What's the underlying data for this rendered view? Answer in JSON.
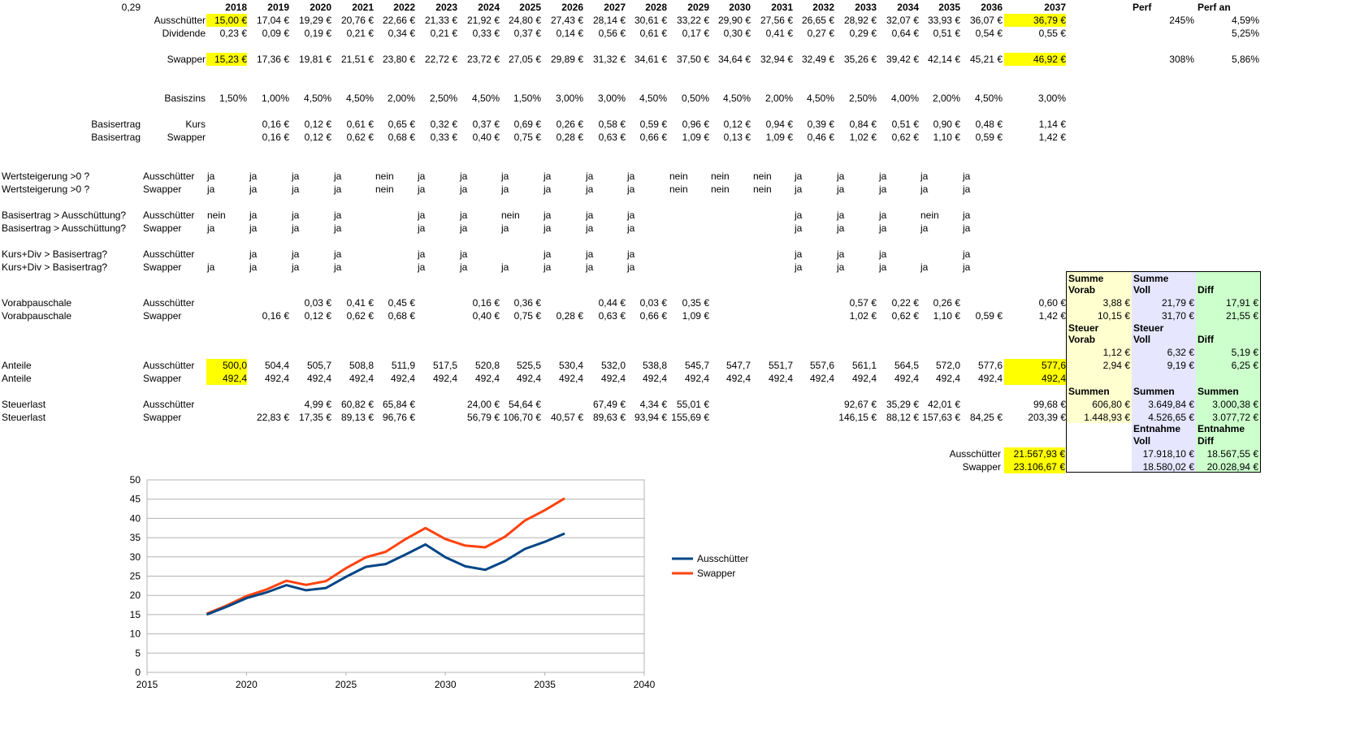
{
  "corner_value": "0,29",
  "colors": {
    "highlight": "#ffff00",
    "summary_yellow": "#ffffd0",
    "summary_lavender": "#e6e6ff",
    "summary_green": "#ccffcc",
    "ausschuetter": "#004586",
    "swapper": "#ff420e"
  },
  "header": {
    "years": [
      "2018",
      "2019",
      "2020",
      "2021",
      "2022",
      "2023",
      "2024",
      "2025",
      "2026",
      "2027",
      "2028",
      "2029",
      "2030",
      "2031",
      "2032",
      "2033",
      "2034",
      "2035",
      "2036"
    ],
    "final_year": "2037",
    "perf": "Perf",
    "perf_an": "Perf an"
  },
  "rows": {
    "ausschuetter": {
      "label": "Ausschütter",
      "values": [
        "15,00 €",
        "17,04 €",
        "19,29 €",
        "20,76 €",
        "22,66 €",
        "21,33 €",
        "21,92 €",
        "24,80 €",
        "27,43 €",
        "28,14 €",
        "30,61 €",
        "33,22 €",
        "29,90 €",
        "27,56 €",
        "26,65 €",
        "28,92 €",
        "32,07 €",
        "33,93 €",
        "36,07 €"
      ],
      "final": "36,79 €",
      "perf": "245%",
      "perf_an": "4,59%"
    },
    "dividende": {
      "label": "Dividende",
      "values": [
        "0,23 €",
        "0,09 €",
        "0,19 €",
        "0,21 €",
        "0,34 €",
        "0,21 €",
        "0,33 €",
        "0,37 €",
        "0,14 €",
        "0,56 €",
        "0,61 €",
        "0,17 €",
        "0,30 €",
        "0,41 €",
        "0,27 €",
        "0,29 €",
        "0,64 €",
        "0,51 €",
        "0,54 €"
      ],
      "final": "0,55 €",
      "perf_an": "5,25%"
    },
    "swapper": {
      "label": "Swapper",
      "values": [
        "15,23 €",
        "17,36 €",
        "19,81 €",
        "21,51 €",
        "23,80 €",
        "22,72 €",
        "23,72 €",
        "27,05 €",
        "29,89 €",
        "31,32 €",
        "34,61 €",
        "37,50 €",
        "34,64 €",
        "32,94 €",
        "32,49 €",
        "35,26 €",
        "39,42 €",
        "42,14 €",
        "45,21 €"
      ],
      "final": "46,92 €",
      "perf": "308%",
      "perf_an": "5,86%"
    },
    "basiszins": {
      "label": "Basiszins",
      "values": [
        "1,50%",
        "1,00%",
        "4,50%",
        "4,50%",
        "2,00%",
        "2,50%",
        "4,50%",
        "1,50%",
        "3,00%",
        "3,00%",
        "4,50%",
        "0,50%",
        "4,50%",
        "2,00%",
        "4,50%",
        "2,50%",
        "4,00%",
        "2,00%",
        "4,50%"
      ],
      "final": "3,00%"
    },
    "basisertrag_kurs": {
      "label_a": "Basisertrag",
      "label_b": "Kurs",
      "values": [
        "",
        "0,16 €",
        "0,12 €",
        "0,61 €",
        "0,65 €",
        "0,32 €",
        "0,37 €",
        "0,69 €",
        "0,26 €",
        "0,58 €",
        "0,59 €",
        "0,96 €",
        "0,12 €",
        "0,94 €",
        "0,39 €",
        "0,84 €",
        "0,51 €",
        "0,90 €",
        "0,48 €"
      ],
      "final": "1,14 €"
    },
    "basisertrag_swapper": {
      "label_a": "Basisertrag",
      "label_b": "Swapper",
      "values": [
        "",
        "0,16 €",
        "0,12 €",
        "0,62 €",
        "0,68 €",
        "0,33 €",
        "0,40 €",
        "0,75 €",
        "0,28 €",
        "0,63 €",
        "0,66 €",
        "1,09 €",
        "0,13 €",
        "1,09 €",
        "0,46 €",
        "1,02 €",
        "0,62 €",
        "1,10 €",
        "0,59 €"
      ],
      "final": "1,42 €"
    }
  },
  "flag_rows": [
    {
      "label": "Wertsteigerung >0 ?",
      "sub": "Ausschütter",
      "values": [
        "ja",
        "ja",
        "ja",
        "ja",
        "nein",
        "ja",
        "ja",
        "ja",
        "ja",
        "ja",
        "ja",
        "nein",
        "nein",
        "nein",
        "ja",
        "ja",
        "ja",
        "ja",
        "ja"
      ]
    },
    {
      "label": "Wertsteigerung >0 ?",
      "sub": "Swapper",
      "values": [
        "ja",
        "ja",
        "ja",
        "ja",
        "nein",
        "ja",
        "ja",
        "ja",
        "ja",
        "ja",
        "ja",
        "nein",
        "nein",
        "nein",
        "ja",
        "ja",
        "ja",
        "ja",
        "ja"
      ]
    },
    {
      "label": "Basisertrag > Ausschüttung?",
      "sub": "Ausschütter",
      "values": [
        "nein",
        "ja",
        "ja",
        "ja",
        "",
        "ja",
        "ja",
        "nein",
        "ja",
        "ja",
        "ja",
        "",
        "",
        "",
        "ja",
        "ja",
        "ja",
        "nein",
        "ja"
      ]
    },
    {
      "label": "Basisertrag > Ausschüttung?",
      "sub": "Swapper",
      "values": [
        "ja",
        "ja",
        "ja",
        "ja",
        "",
        "ja",
        "ja",
        "ja",
        "ja",
        "ja",
        "ja",
        "",
        "",
        "",
        "ja",
        "ja",
        "ja",
        "ja",
        "ja"
      ]
    },
    {
      "label": "Kurs+Div > Basisertrag?",
      "sub": "Ausschütter",
      "values": [
        "",
        "ja",
        "ja",
        "ja",
        "",
        "ja",
        "ja",
        "",
        "ja",
        "ja",
        "ja",
        "",
        "",
        "",
        "ja",
        "ja",
        "ja",
        "",
        "ja"
      ]
    },
    {
      "label": "Kurs+Div > Basisertrag?",
      "sub": "Swapper",
      "values": [
        "ja",
        "ja",
        "ja",
        "ja",
        "",
        "ja",
        "ja",
        "ja",
        "ja",
        "ja",
        "ja",
        "",
        "",
        "",
        "ja",
        "ja",
        "ja",
        "ja",
        "ja"
      ]
    }
  ],
  "vorab_rows": [
    {
      "label": "Vorabpauschale",
      "sub": "Ausschütter",
      "values": [
        "",
        "",
        "0,03 €",
        "0,41 €",
        "0,45 €",
        "",
        "0,16 €",
        "0,36 €",
        "",
        "0,44 €",
        "0,03 €",
        "0,35 €",
        "",
        "",
        "",
        "0,57 €",
        "0,22 €",
        "0,26 €",
        ""
      ],
      "final": "0,60 €"
    },
    {
      "label": "Vorabpauschale",
      "sub": "Swapper",
      "values": [
        "",
        "0,16 €",
        "0,12 €",
        "0,62 €",
        "0,68 €",
        "",
        "0,40 €",
        "0,75 €",
        "0,28 €",
        "0,63 €",
        "0,66 €",
        "1,09 €",
        "",
        "",
        "",
        "1,02 €",
        "0,62 €",
        "1,10 €",
        "0,59 €"
      ],
      "final": "1,42 €"
    }
  ],
  "anteile_rows": [
    {
      "label": "Anteile",
      "sub": "Ausschütter",
      "values": [
        "500,0",
        "504,4",
        "505,7",
        "508,8",
        "511,9",
        "517,5",
        "520,8",
        "525,5",
        "530,4",
        "532,0",
        "538,8",
        "545,7",
        "547,7",
        "551,7",
        "557,6",
        "561,1",
        "564,5",
        "572,0",
        "577,6"
      ],
      "final": "577,6"
    },
    {
      "label": "Anteile",
      "sub": "Swapper",
      "values": [
        "492,4",
        "492,4",
        "492,4",
        "492,4",
        "492,4",
        "492,4",
        "492,4",
        "492,4",
        "492,4",
        "492,4",
        "492,4",
        "492,4",
        "492,4",
        "492,4",
        "492,4",
        "492,4",
        "492,4",
        "492,4",
        "492,4"
      ],
      "final": "492,4"
    }
  ],
  "steuer_rows": [
    {
      "label": "Steuerlast",
      "sub": "Ausschütter",
      "values": [
        "",
        "",
        "4,99 €",
        "60,82 €",
        "65,84 €",
        "",
        "24,00 €",
        "54,64 €",
        "",
        "67,49 €",
        "4,34 €",
        "55,01 €",
        "",
        "",
        "",
        "92,67 €",
        "35,29 €",
        "42,01 €",
        ""
      ],
      "final": "99,68 €"
    },
    {
      "label": "Steuerlast",
      "sub": "Swapper",
      "values": [
        "",
        "22,83 €",
        "17,35 €",
        "89,13 €",
        "96,76 €",
        "",
        "56,79 €",
        "106,70 €",
        "40,57 €",
        "89,63 €",
        "93,94 €",
        "155,69 €",
        "",
        "",
        "",
        "146,15 €",
        "88,12 €",
        "157,63 €",
        "84,25 €"
      ],
      "final": "203,39 €"
    }
  ],
  "summary": {
    "h1": {
      "a1": "Summe",
      "a2": "Vorab",
      "b1": "Summe",
      "b2": "Voll",
      "c2": "Diff"
    },
    "r1": [
      "3,88 €",
      "21,79 €",
      "17,91 €"
    ],
    "r2": [
      "10,15 €",
      "31,70 €",
      "21,55 €"
    ],
    "h2": {
      "a1": "Steuer",
      "a2": "Vorab",
      "b1": "Steuer",
      "b2": "Voll",
      "c2": "Diff"
    },
    "r3": [
      "1,12 €",
      "6,32 €",
      "5,19 €"
    ],
    "r4": [
      "2,94 €",
      "9,19 €",
      "6,25 €"
    ],
    "h3": {
      "a": "Summen",
      "b": "Summen",
      "c": "Summen"
    },
    "r5": [
      "606,80 €",
      "3.649,84 €",
      "3.000,38 €"
    ],
    "r6": [
      "1.448,93 €",
      "4.526,65 €",
      "3.077,72 €"
    ],
    "h4": {
      "b1": "Entnahme",
      "b2": "Voll",
      "c1": "Entnahme",
      "c2": "Diff"
    },
    "r7": {
      "label": "Ausschütter",
      "vals": [
        "21.567,93 €",
        "17.918,10 €",
        "18.567,55 €"
      ]
    },
    "r8": {
      "label": "Swapper",
      "vals": [
        "23.106,67 €",
        "18.580,02 €",
        "20.028,94 €"
      ]
    }
  },
  "chart_data": {
    "type": "line",
    "title": "",
    "xlabel": "",
    "ylabel": "",
    "xlim": [
      2015,
      2040
    ],
    "ylim": [
      0,
      50
    ],
    "x_ticks": [
      2015,
      2020,
      2025,
      2030,
      2035,
      2040
    ],
    "y_ticks": [
      0,
      5,
      10,
      15,
      20,
      25,
      30,
      35,
      40,
      45,
      50
    ],
    "grid": "horizontal",
    "legend_position": "right",
    "x": [
      2018,
      2019,
      2020,
      2021,
      2022,
      2023,
      2024,
      2025,
      2026,
      2027,
      2028,
      2029,
      2030,
      2031,
      2032,
      2033,
      2034,
      2035,
      2036
    ],
    "series": [
      {
        "name": "Ausschütter",
        "color": "#004586",
        "values": [
          15.0,
          17.04,
          19.29,
          20.76,
          22.66,
          21.33,
          21.92,
          24.8,
          27.43,
          28.14,
          30.61,
          33.22,
          29.9,
          27.56,
          26.65,
          28.92,
          32.07,
          33.93,
          36.07
        ]
      },
      {
        "name": "Swapper",
        "color": "#ff420e",
        "values": [
          15.23,
          17.36,
          19.81,
          21.51,
          23.8,
          22.72,
          23.72,
          27.05,
          29.89,
          31.32,
          34.61,
          37.5,
          34.64,
          32.94,
          32.49,
          35.26,
          39.42,
          42.14,
          45.21
        ]
      }
    ]
  }
}
